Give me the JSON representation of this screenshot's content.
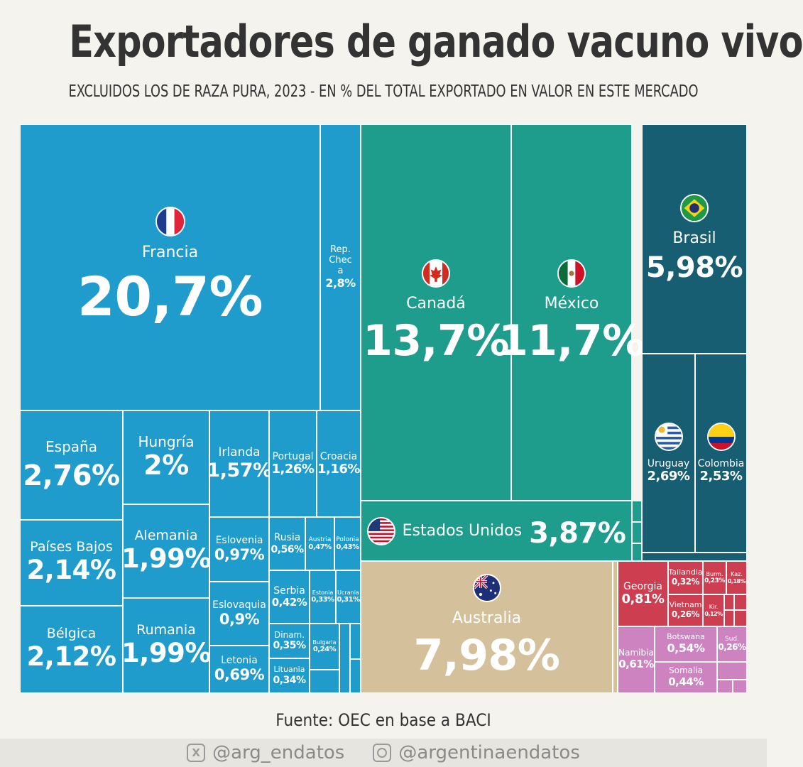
{
  "header": {
    "title": "Exportadores de ganado vacuno vivo",
    "subtitle": "EXCLUIDOS LOS DE RAZA PURA, 2023 - EN % DEL TOTAL EXPORTADO EN VALOR EN ESTE MERCADO"
  },
  "colors": {
    "europe": "#1f9ccc",
    "north_america": "#1e9c8c",
    "south_america": "#175e73",
    "oceania": "#d4c19c",
    "asia": "#cc3e50",
    "africa": "#cc83c0"
  },
  "chart_data": {
    "type": "treemap",
    "title": "Exportadores de ganado vacuno vivo",
    "unit": "%",
    "items": [
      {
        "name": "Francia",
        "value": 20.7,
        "label": "20,7%",
        "group": "europe",
        "flag": "france"
      },
      {
        "name": "Rep. Checa",
        "value": 2.8,
        "label": "2,8%",
        "group": "europe"
      },
      {
        "name": "España",
        "value": 2.76,
        "label": "2,76%",
        "group": "europe"
      },
      {
        "name": "Hungría",
        "value": 2.0,
        "label": "2%",
        "group": "europe"
      },
      {
        "name": "Irlanda",
        "value": 1.57,
        "label": "1,57%",
        "group": "europe"
      },
      {
        "name": "Portugal",
        "value": 1.26,
        "label": "1,26%",
        "group": "europe"
      },
      {
        "name": "Croacia",
        "value": 1.16,
        "label": "1,16%",
        "group": "europe"
      },
      {
        "name": "Países Bajos",
        "value": 2.14,
        "label": "2,14%",
        "group": "europe"
      },
      {
        "name": "Alemania",
        "value": 1.99,
        "label": "1,99%",
        "group": "europe"
      },
      {
        "name": "Eslovenia",
        "value": 0.97,
        "label": "0,97%",
        "group": "europe"
      },
      {
        "name": "Rusia",
        "value": 0.56,
        "label": "0,56%",
        "group": "europe"
      },
      {
        "name": "Austria",
        "value": 0.47,
        "label": "0,47%",
        "group": "europe"
      },
      {
        "name": "Polonia",
        "value": 0.43,
        "label": "0,43%",
        "group": "europe"
      },
      {
        "name": "Bélgica",
        "value": 2.12,
        "label": "2,12%",
        "group": "europe"
      },
      {
        "name": "Rumania",
        "value": 1.99,
        "label": "1,99%",
        "group": "europe"
      },
      {
        "name": "Eslovaquia",
        "value": 0.9,
        "label": "0,9%",
        "group": "europe"
      },
      {
        "name": "Serbia",
        "value": 0.42,
        "label": "0,42%",
        "group": "europe"
      },
      {
        "name": "Estonia",
        "value": 0.33,
        "label": "0,33%",
        "group": "europe"
      },
      {
        "name": "Ucrania",
        "value": 0.31,
        "label": "0,31%",
        "group": "europe"
      },
      {
        "name": "Dinam.",
        "value": 0.35,
        "label": "0,35%",
        "group": "europe"
      },
      {
        "name": "Bulgaria",
        "value": 0.24,
        "label": "0,24%",
        "group": "europe"
      },
      {
        "name": "Letonia",
        "value": 0.69,
        "label": "0,69%",
        "group": "europe"
      },
      {
        "name": "Lituania",
        "value": 0.34,
        "label": "0,34%",
        "group": "europe"
      },
      {
        "name": "Canadá",
        "value": 13.7,
        "label": "13,7%",
        "group": "north_america",
        "flag": "canada"
      },
      {
        "name": "México",
        "value": 11.7,
        "label": "11,7%",
        "group": "north_america",
        "flag": "mexico"
      },
      {
        "name": "Estados Unidos",
        "value": 3.87,
        "label": "3,87%",
        "group": "north_america",
        "flag": "usa"
      },
      {
        "name": "Brasil",
        "value": 5.98,
        "label": "5,98%",
        "group": "south_america",
        "flag": "brazil"
      },
      {
        "name": "Uruguay",
        "value": 2.69,
        "label": "2,69%",
        "group": "south_america",
        "flag": "uruguay"
      },
      {
        "name": "Colombia",
        "value": 2.53,
        "label": "2,53%",
        "group": "south_america",
        "flag": "colombia"
      },
      {
        "name": "Australia",
        "value": 7.98,
        "label": "7,98%",
        "group": "oceania",
        "flag": "australia"
      },
      {
        "name": "Georgia",
        "value": 0.81,
        "label": "0,81%",
        "group": "asia"
      },
      {
        "name": "Tailandia",
        "value": 0.32,
        "label": "0,32%",
        "group": "asia"
      },
      {
        "name": "Burm.",
        "value": 0.23,
        "label": "0,23%",
        "group": "asia"
      },
      {
        "name": "Kaz.",
        "value": 0.18,
        "label": "0,18%",
        "group": "asia"
      },
      {
        "name": "Vietnam",
        "value": 0.26,
        "label": "0,26%",
        "group": "asia"
      },
      {
        "name": "Kir.",
        "value": 0.12,
        "label": "0,12%",
        "group": "asia"
      },
      {
        "name": "Namibia",
        "value": 0.61,
        "label": "0,61%",
        "group": "africa"
      },
      {
        "name": "Botswana",
        "value": 0.54,
        "label": "0,54%",
        "group": "africa"
      },
      {
        "name": "Sud.",
        "value": 0.26,
        "label": "0,26%",
        "group": "africa"
      },
      {
        "name": "Somalia",
        "value": 0.44,
        "label": "0,44%",
        "group": "africa"
      }
    ]
  },
  "source": "Fuente: OEC en base a BACI",
  "footer": {
    "twitter": "@arg_endatos",
    "instagram": "@argentinaendatos"
  }
}
